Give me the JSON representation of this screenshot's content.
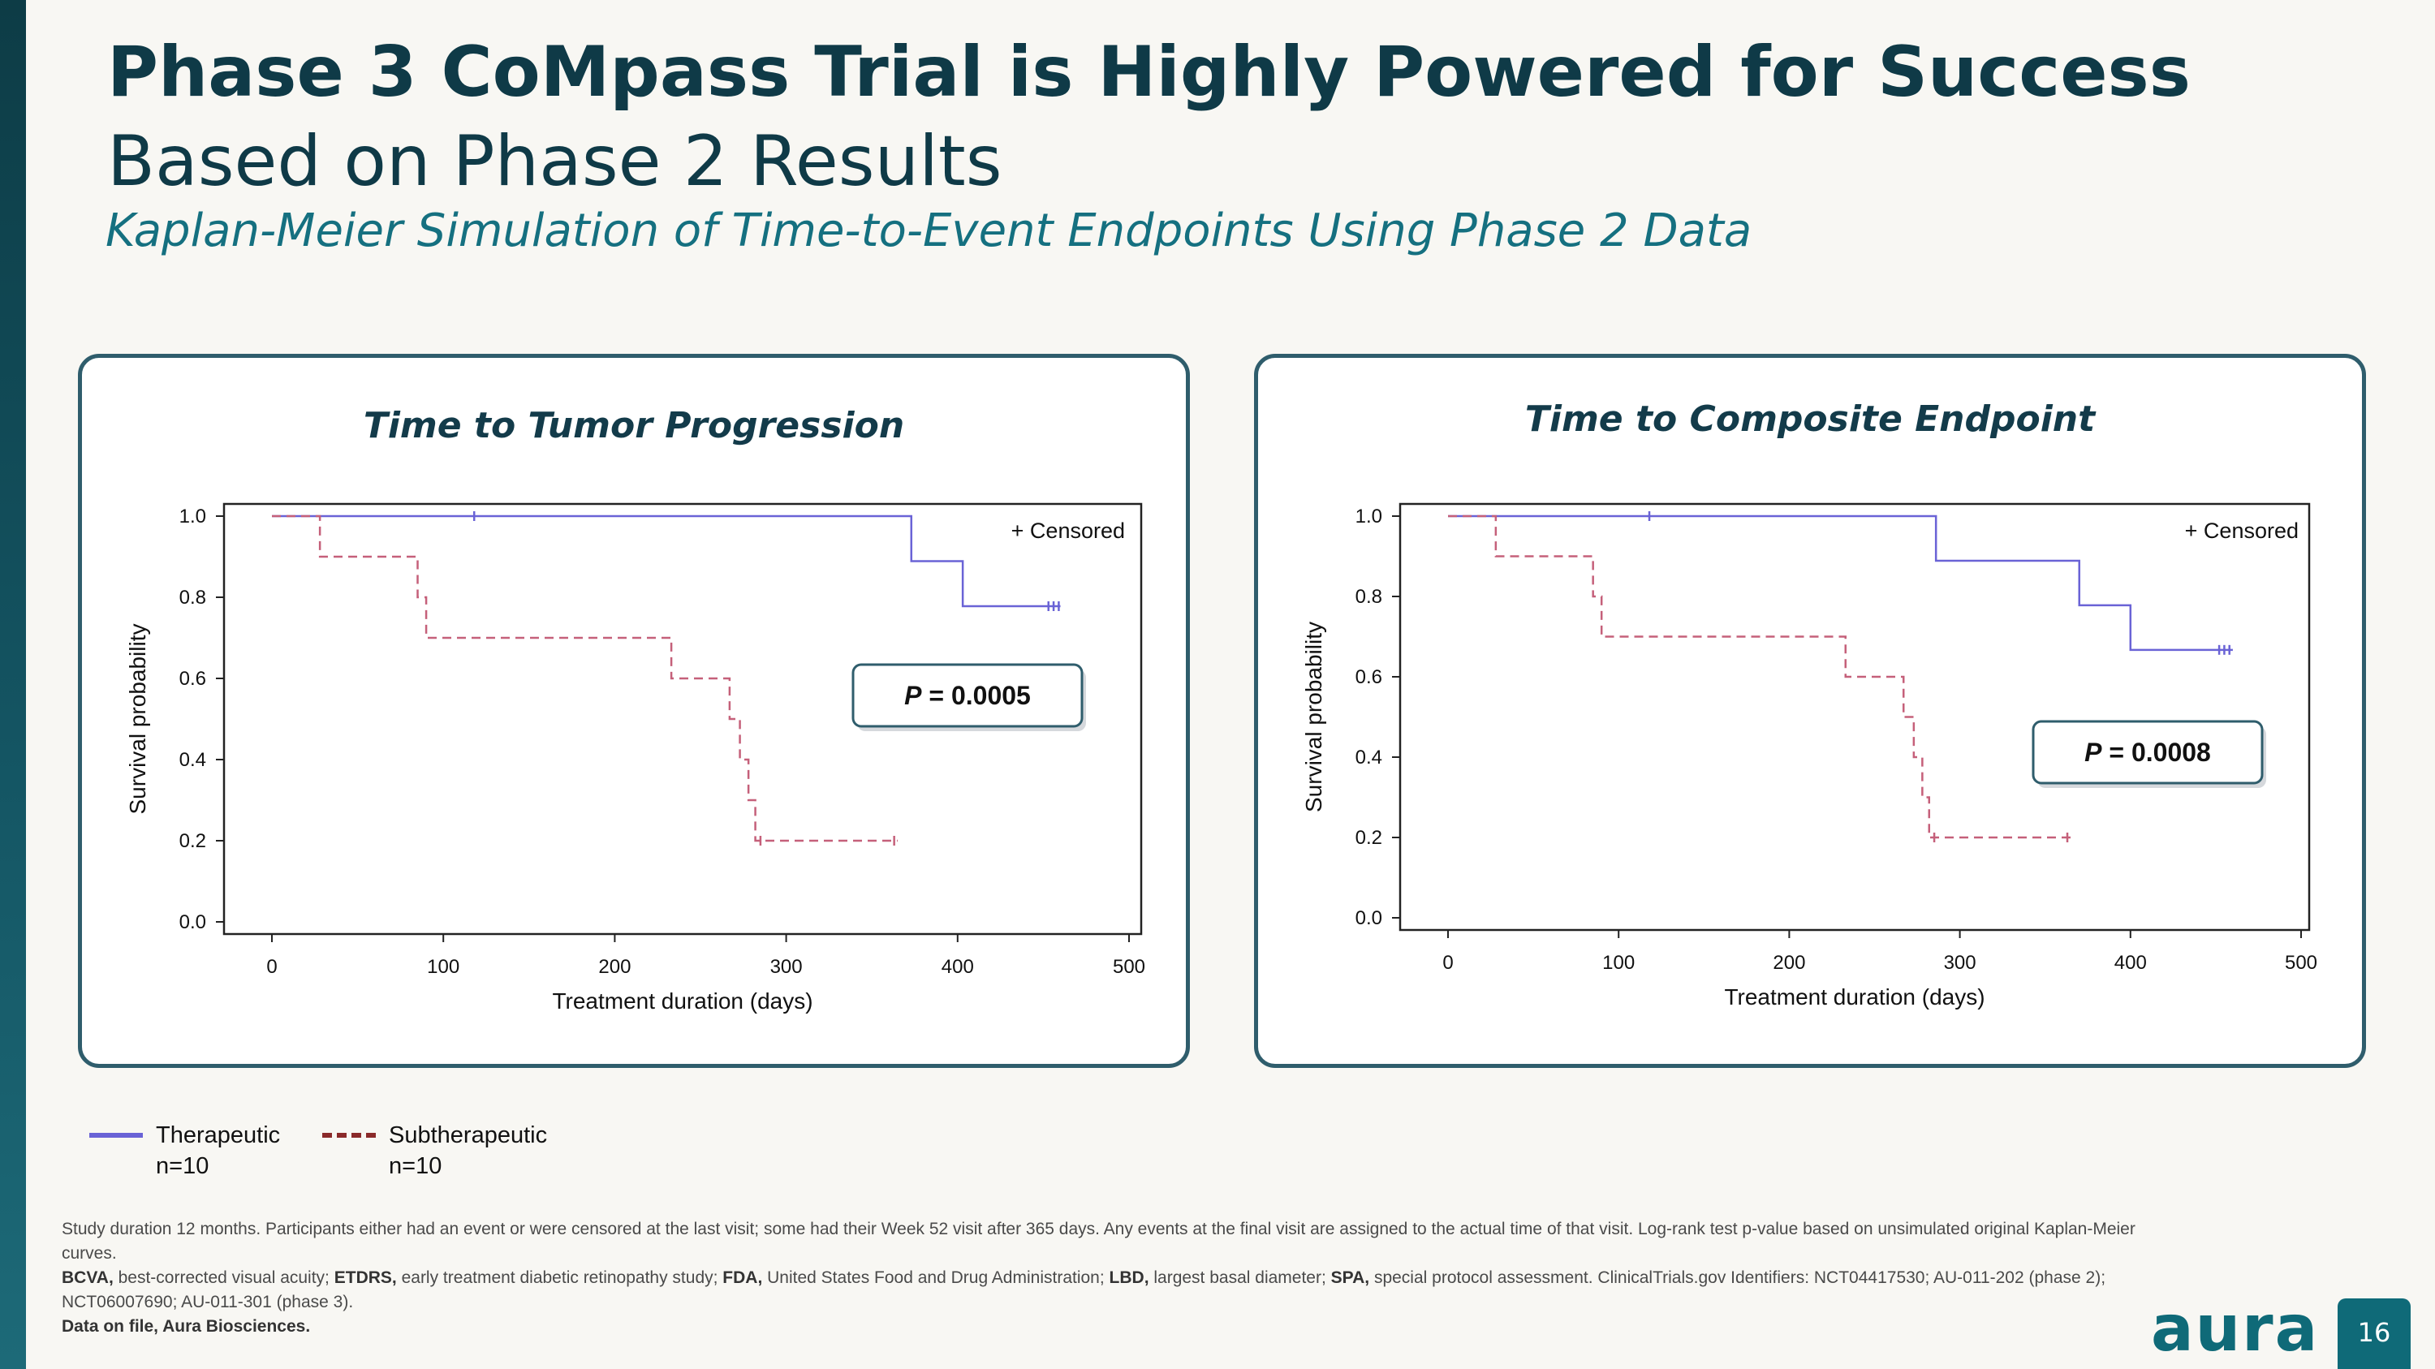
{
  "slide": {
    "title_bold": "Phase 3 CoMpass Trial is Highly Powered for Success",
    "title_light": " Based on Phase 2 Results",
    "subtitle": "Kaplan-Meier Simulation of Time-to-Event Endpoints Using Phase 2 Data",
    "page_number": "16",
    "logo_text": "aura"
  },
  "legend": {
    "items": [
      {
        "label": "Therapeutic",
        "sub": "n=10",
        "color": "#6a63d6",
        "style": "solid"
      },
      {
        "label": "Subtherapeutic",
        "sub": "n=10",
        "color": "#8b2a2a",
        "style": "dashed"
      }
    ]
  },
  "footnote": {
    "line1": "Study duration 12 months. Participants either had an event or were censored at the last visit; some had their Week 52 visit after 365 days. Any events at the final visit are assigned to the actual time of that visit. Log-rank test p-value based on unsimulated original Kaplan-Meier curves.",
    "abbrev": [
      {
        "term": "BCVA,",
        "def": " best-corrected visual acuity; "
      },
      {
        "term": "ETDRS,",
        "def": " early treatment diabetic retinopathy study; "
      },
      {
        "term": "FDA,",
        "def": " United States Food and Drug Administration; "
      },
      {
        "term": "LBD,",
        "def": " largest basal diameter; "
      },
      {
        "term": "SPA,",
        "def": " special protocol assessment. ClinicalTrials.gov Identifiers: NCT04417530; AU-011-202 (phase 2); NCT06007690; AU-011-301 (phase 3)."
      }
    ],
    "source": "Data on file, Aura Biosciences."
  },
  "chart_data": [
    {
      "type": "line",
      "title": "Time to Tumor Progression",
      "xlabel": "Treatment duration (days)",
      "ylabel": "Survival probability",
      "xlim": [
        0,
        500
      ],
      "ylim": [
        0,
        1.0
      ],
      "xticks": [
        0,
        100,
        200,
        300,
        400,
        500
      ],
      "yticks": [
        "0.0",
        "0.2",
        "0.4",
        "0.6",
        "0.8",
        "1.0"
      ],
      "legend_label": "+ Censored",
      "pvalue_label": "P",
      "pvalue_text": " = 0.0005",
      "series": [
        {
          "style": "solid",
          "color": "#6a63d6",
          "steps": [
            [
              0,
              1.0
            ],
            [
              373,
              0.889
            ],
            [
              403,
              0.778
            ],
            [
              460,
              0.778
            ]
          ],
          "censored": [
            [
              118,
              1.0
            ],
            [
              453,
              0.778
            ],
            [
              456,
              0.778
            ],
            [
              459,
              0.778
            ]
          ]
        },
        {
          "style": "dashed",
          "color": "#c5607a",
          "steps": [
            [
              0,
              1.0
            ],
            [
              28,
              0.9
            ],
            [
              85,
              0.8
            ],
            [
              90,
              0.7
            ],
            [
              233,
              0.6
            ],
            [
              267,
              0.5
            ],
            [
              273,
              0.4
            ],
            [
              278,
              0.3
            ],
            [
              282,
              0.2
            ],
            [
              365,
              0.2
            ]
          ],
          "censored": [
            [
              285,
              0.2
            ],
            [
              363,
              0.2
            ]
          ]
        }
      ]
    },
    {
      "type": "line",
      "title": "Time to Composite Endpoint",
      "xlabel": "Treatment duration (days)",
      "ylabel": "Survival probability",
      "xlim": [
        0,
        500
      ],
      "ylim": [
        0,
        1.0
      ],
      "xticks": [
        0,
        100,
        200,
        300,
        400,
        500
      ],
      "yticks": [
        "0.0",
        "0.2",
        "0.4",
        "0.6",
        "0.8",
        "1.0"
      ],
      "legend_label": "+ Censored",
      "pvalue_label": "P",
      "pvalue_text": " = 0.0008",
      "series": [
        {
          "style": "solid",
          "color": "#6a63d6",
          "steps": [
            [
              0,
              1.0
            ],
            [
              286,
              0.889
            ],
            [
              370,
              0.778
            ],
            [
              400,
              0.667
            ],
            [
              460,
              0.667
            ]
          ],
          "censored": [
            [
              118,
              1.0
            ],
            [
              452,
              0.667
            ],
            [
              455,
              0.667
            ],
            [
              458,
              0.667
            ]
          ]
        },
        {
          "style": "dashed",
          "color": "#c5607a",
          "steps": [
            [
              0,
              1.0
            ],
            [
              28,
              0.9
            ],
            [
              85,
              0.8
            ],
            [
              90,
              0.7
            ],
            [
              233,
              0.6
            ],
            [
              267,
              0.5
            ],
            [
              273,
              0.4
            ],
            [
              278,
              0.3
            ],
            [
              282,
              0.2
            ],
            [
              365,
              0.2
            ]
          ],
          "censored": [
            [
              285,
              0.2
            ],
            [
              363,
              0.2
            ]
          ]
        }
      ]
    }
  ]
}
